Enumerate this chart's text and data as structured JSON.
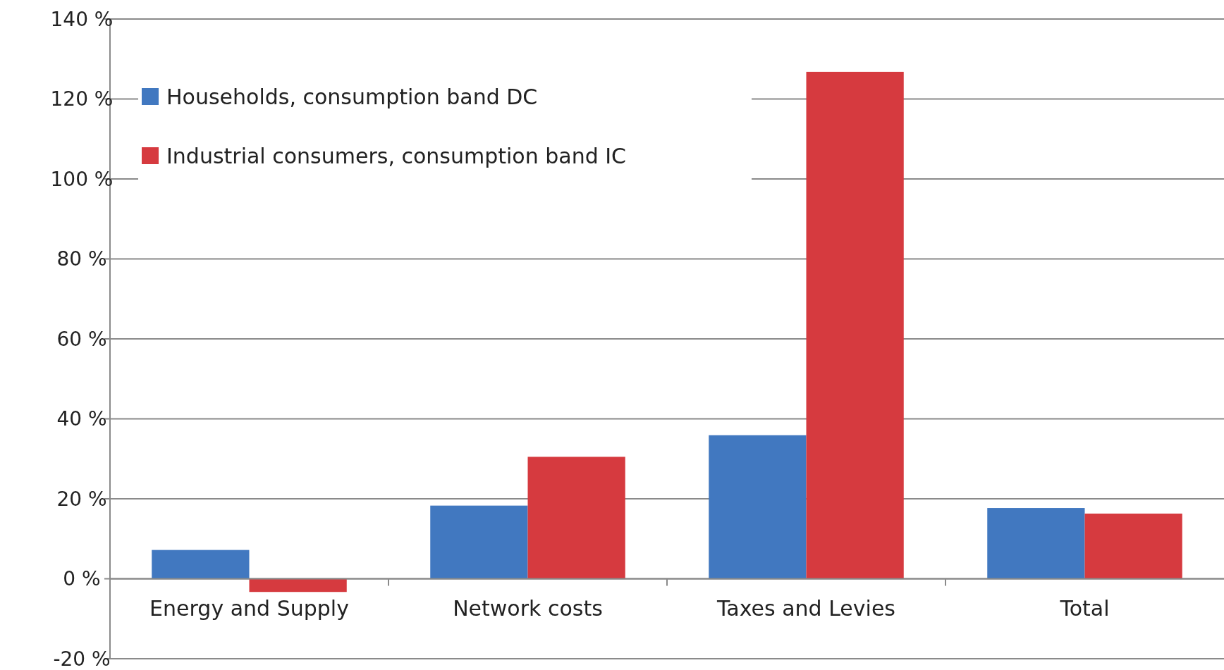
{
  "chart_data": {
    "type": "bar",
    "categories": [
      "Energy and Supply",
      "Network costs",
      "Taxes and Levies",
      "Total"
    ],
    "series": [
      {
        "name": "Households, consumption band DC",
        "color": "#4178c0",
        "values": [
          7.2,
          18.3,
          35.9,
          17.7
        ]
      },
      {
        "name": "Industrial consumers, consumption band IC",
        "color": "#d63a3f",
        "values": [
          -3.3,
          30.5,
          126.8,
          16.3
        ]
      }
    ],
    "ylim": [
      -20,
      140
    ],
    "yticks": [
      {
        "value": -20,
        "label": "-20 %"
      },
      {
        "value": 0,
        "label": "0 %"
      },
      {
        "value": 20,
        "label": "20 %"
      },
      {
        "value": 40,
        "label": "40 %"
      },
      {
        "value": 60,
        "label": "60 %"
      },
      {
        "value": 80,
        "label": "80 %"
      },
      {
        "value": 100,
        "label": "100 %"
      },
      {
        "value": 120,
        "label": "120 %"
      },
      {
        "value": 140,
        "label": "140 %"
      }
    ],
    "grid": "y",
    "legend": "top left"
  }
}
